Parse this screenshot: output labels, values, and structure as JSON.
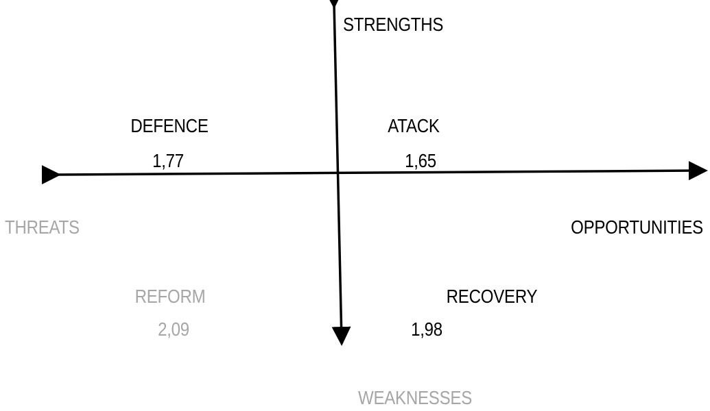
{
  "axes": {
    "top": "STRENGTHS",
    "bottom": "WEAKNESSES",
    "left": "THREATS",
    "right": "OPPORTUNITIES"
  },
  "quadrants": {
    "defence": {
      "label": "DEFENCE",
      "value": "1,77"
    },
    "atack": {
      "label": "ATACK",
      "value": "1,65"
    },
    "reform": {
      "label": "REFORM",
      "value": "2,09"
    },
    "recovery": {
      "label": "RECOVERY",
      "value": "1,98"
    }
  },
  "colors": {
    "dark": "#000000",
    "muted": "#a6a6a6"
  }
}
